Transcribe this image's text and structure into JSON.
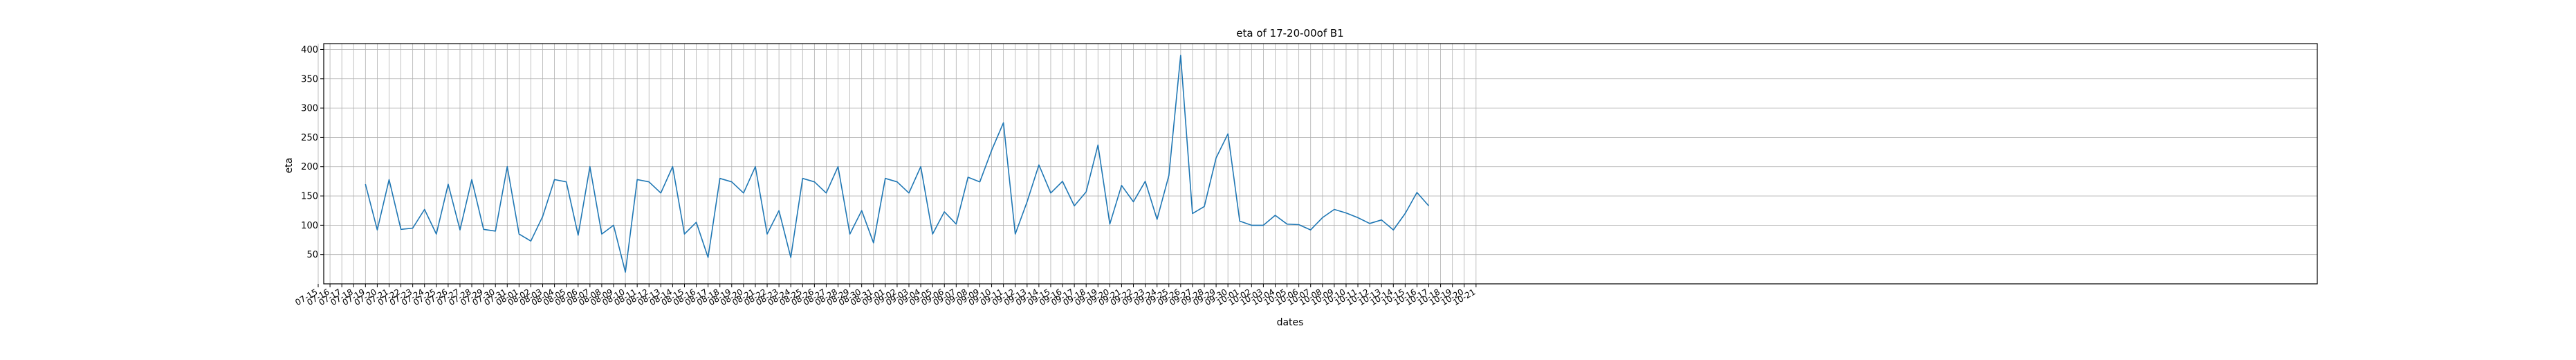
{
  "chart_data": {
    "type": "line",
    "title": "eta of 17-20-00of B1",
    "xlabel": "dates",
    "ylabel": "eta",
    "grid": true,
    "ylim": [
      0,
      410
    ],
    "yticks": [
      50,
      100,
      150,
      200,
      250,
      300,
      350,
      400
    ],
    "xticks": [
      "07-15",
      "07-16",
      "07-17",
      "07-18",
      "07-19",
      "07-20",
      "07-21",
      "07-22",
      "07-23",
      "07-24",
      "07-25",
      "07-26",
      "07-27",
      "07-28",
      "07-29",
      "07-30",
      "07-31",
      "08-01",
      "08-02",
      "08-03",
      "08-04",
      "08-05",
      "08-06",
      "08-07",
      "08-08",
      "08-09",
      "08-10",
      "08-11",
      "08-12",
      "08-13",
      "08-14",
      "08-15",
      "08-16",
      "08-17",
      "08-18",
      "08-19",
      "08-20",
      "08-21",
      "08-22",
      "08-23",
      "08-24",
      "08-25",
      "08-26",
      "08-27",
      "08-28",
      "08-29",
      "08-30",
      "08-31",
      "09-01",
      "09-02",
      "09-03",
      "09-04",
      "09-05",
      "09-06",
      "09-07",
      "09-08",
      "09-09",
      "09-10",
      "09-11",
      "09-12",
      "09-13",
      "09-14",
      "09-15",
      "09-16",
      "09-17",
      "09-18",
      "09-19",
      "09-20",
      "09-21",
      "09-22",
      "09-23",
      "09-24",
      "09-25",
      "09-26",
      "09-27",
      "09-28",
      "09-29",
      "09-30",
      "10-01",
      "10-02",
      "10-03",
      "10-04",
      "10-05",
      "10-06",
      "10-07",
      "10-08",
      "10-09",
      "10-10",
      "10-11",
      "10-12",
      "10-13",
      "10-14",
      "10-15",
      "10-16",
      "10-17",
      "10-18",
      "10-19",
      "10-20",
      "10-21"
    ],
    "series": [
      {
        "color": "#1f77b4",
        "x": [
          "07-19",
          "07-20",
          "07-21",
          "07-22",
          "07-23",
          "07-24",
          "07-25",
          "07-26",
          "07-27",
          "07-28",
          "07-29",
          "07-30",
          "07-31",
          "08-01",
          "08-02",
          "08-03",
          "08-04",
          "08-05",
          "08-06",
          "08-07",
          "08-08",
          "08-09",
          "08-10",
          "08-11",
          "08-12",
          "08-13",
          "08-14",
          "08-15",
          "08-16",
          "08-17",
          "08-18",
          "08-19",
          "08-20",
          "08-21",
          "08-22",
          "08-23",
          "08-24",
          "08-25",
          "08-26",
          "08-27",
          "08-28",
          "08-29",
          "08-30",
          "08-31",
          "09-01",
          "09-02",
          "09-03",
          "09-04",
          "09-05",
          "09-06",
          "09-07",
          "09-08",
          "09-09",
          "09-10",
          "09-11",
          "09-12",
          "09-13",
          "09-14",
          "09-15",
          "09-16",
          "09-17",
          "09-18",
          "09-19",
          "09-20",
          "09-21",
          "09-22",
          "09-23",
          "09-24",
          "09-25",
          "09-26",
          "09-27",
          "09-28",
          "09-29",
          "09-30",
          "10-01",
          "10-02",
          "10-03",
          "10-04",
          "10-05",
          "10-06",
          "10-07",
          "10-08",
          "10-09",
          "10-10",
          "10-11",
          "10-12",
          "10-13",
          "10-14",
          "10-15",
          "10-16",
          "10-17"
        ],
        "values": [
          170,
          92,
          178,
          93,
          95,
          127,
          85,
          170,
          92,
          178,
          93,
          90,
          200,
          85,
          73,
          115,
          178,
          174,
          83,
          200,
          85,
          100,
          20,
          178,
          174,
          155,
          200,
          85,
          105,
          45,
          180,
          174,
          155,
          200,
          85,
          125,
          45,
          180,
          174,
          155,
          200,
          85,
          125,
          70,
          180,
          174,
          155,
          200,
          85,
          123,
          102,
          182,
          174,
          228,
          275,
          85,
          140,
          203,
          155,
          175,
          133,
          157,
          237,
          102,
          168,
          140,
          175,
          110,
          185,
          390,
          120,
          132,
          215,
          256,
          107,
          100,
          100,
          117,
          102,
          101,
          92,
          113,
          127,
          121,
          113,
          103,
          109,
          92,
          120,
          156,
          133
        ]
      }
    ]
  }
}
